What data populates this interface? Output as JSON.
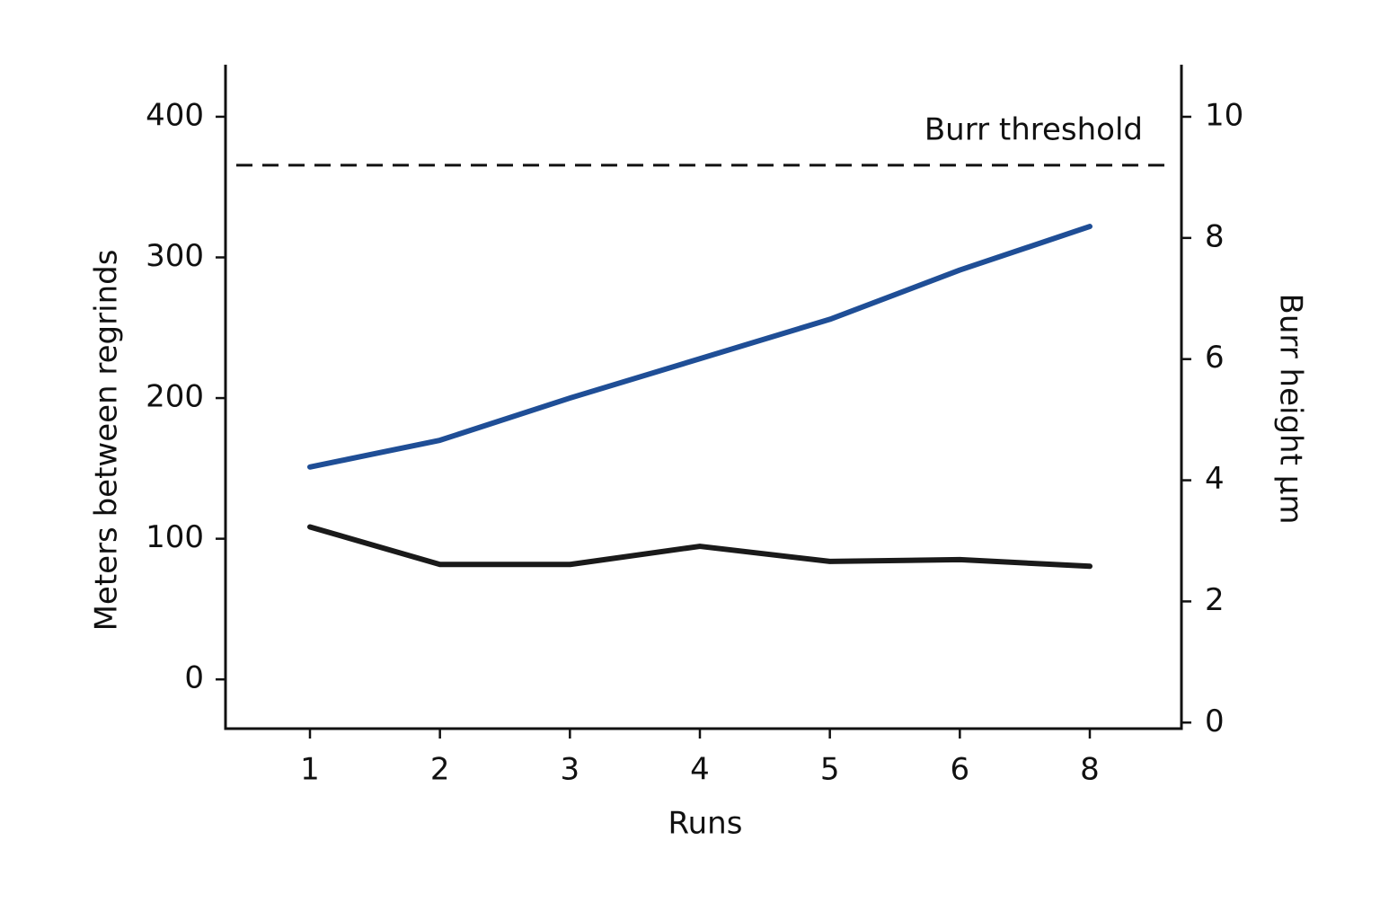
{
  "chart_data": {
    "type": "line",
    "x_label": "Runs",
    "y_label": "Meters between regrinds",
    "y2_label": "Burr height µm",
    "categories": [
      "1",
      "2",
      "3",
      "4",
      "5",
      "6",
      "8"
    ],
    "series": [
      {
        "color": "#1f4e96",
        "values": [
          151,
          170,
          200,
          228,
          256,
          291,
          322
        ]
      },
      {
        "color": "#1a1a1a",
        "axis": "y2",
        "values": [
          3.23,
          2.61,
          2.61,
          2.91,
          2.66,
          2.69,
          2.58
        ]
      }
    ],
    "ylim": [
      -35,
      437
    ],
    "yticks": [
      0,
      100,
      200,
      300,
      400
    ],
    "y2lim": [
      -0.1,
      10.86
    ],
    "y2ticks": [
      0,
      2,
      4,
      6,
      8,
      10
    ],
    "threshold": {
      "value": 9.2,
      "axis": "y2",
      "label": "Burr threshold",
      "color": "#111111"
    },
    "grid": false
  }
}
